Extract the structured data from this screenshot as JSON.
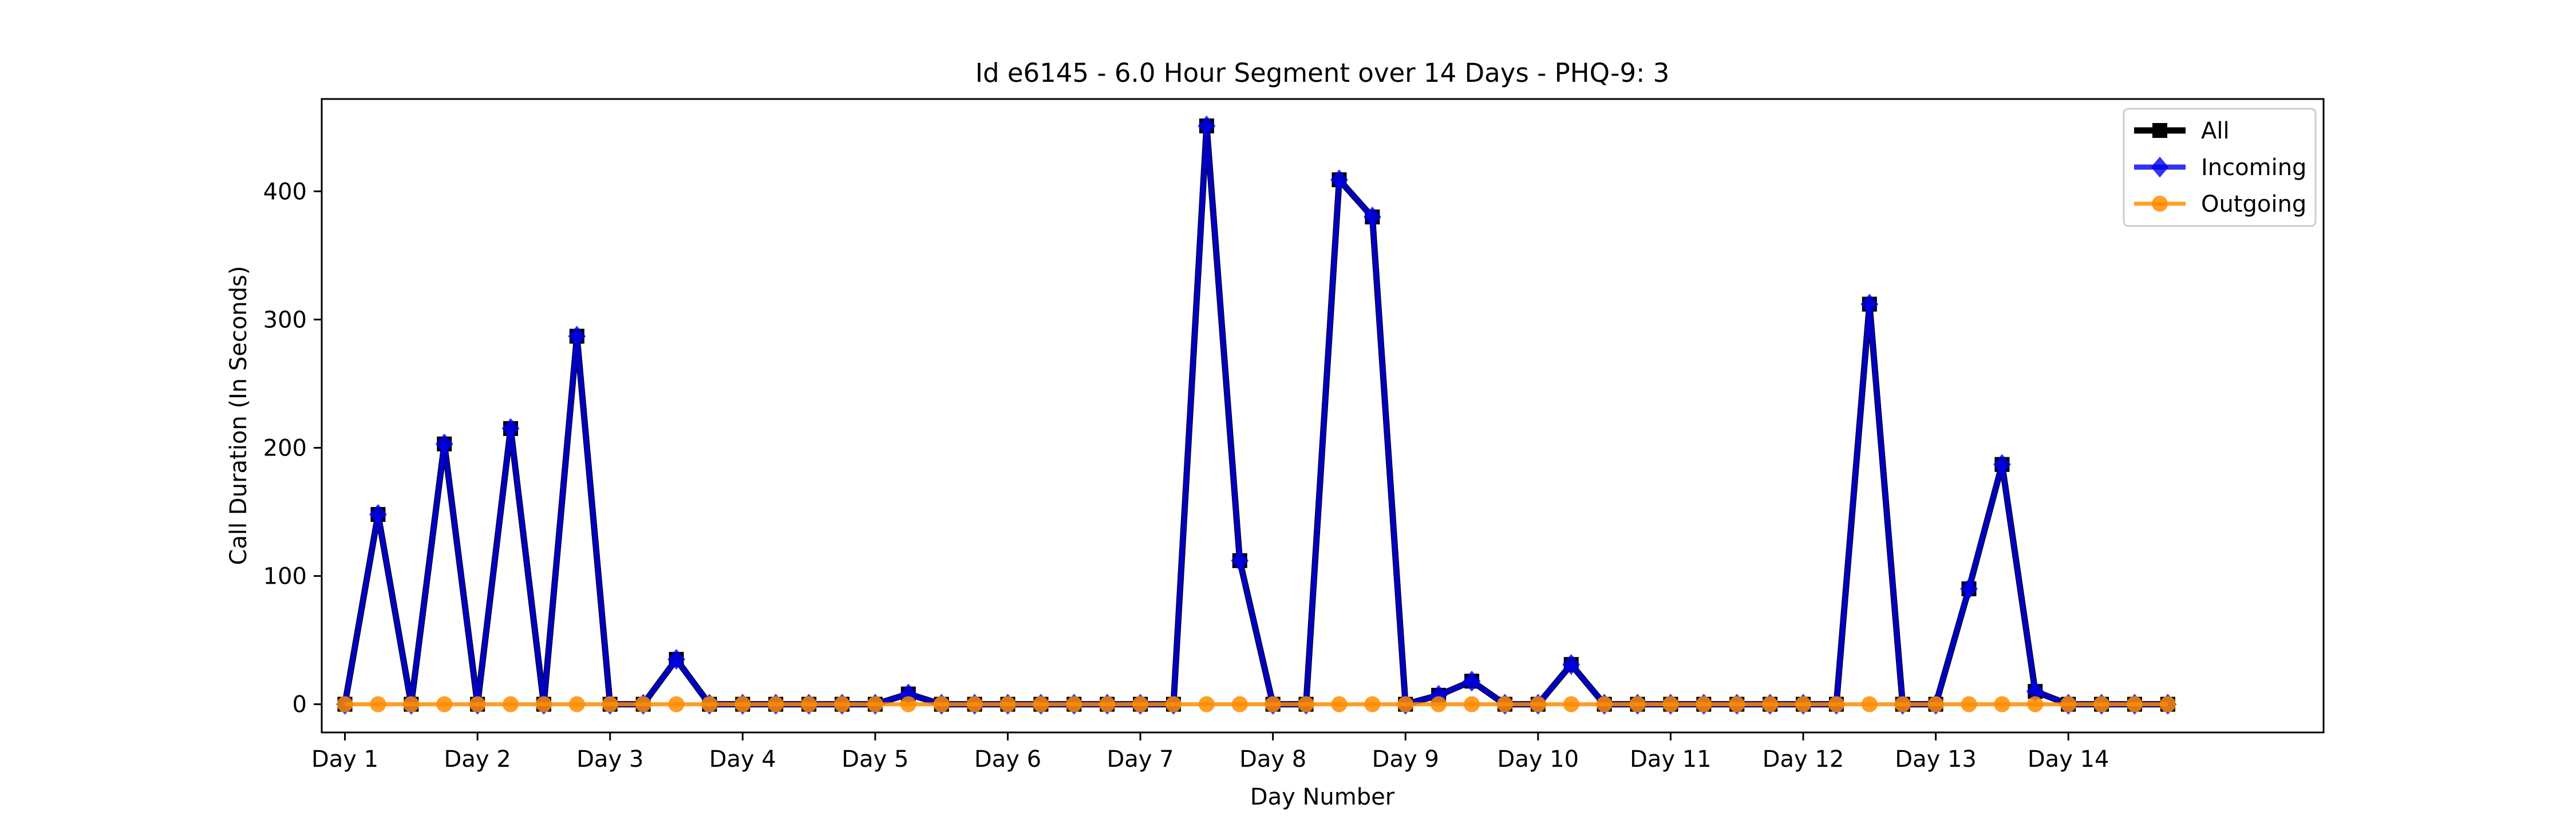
{
  "chart_data": {
    "type": "line",
    "title": "Id e6145 - 6.0 Hour Segment over 14 Days - PHQ-9: 3",
    "xlabel": "Day Number",
    "ylabel": "Call Duration (In Seconds)",
    "xlim": [
      -0.7,
      59.7
    ],
    "ylim": [
      -22,
      472
    ],
    "yticks": [
      0,
      100,
      200,
      300,
      400
    ],
    "xticks": [
      {
        "pos": 0,
        "label": "Day 1"
      },
      {
        "pos": 4,
        "label": "Day 2"
      },
      {
        "pos": 8,
        "label": "Day 3"
      },
      {
        "pos": 12,
        "label": "Day 4"
      },
      {
        "pos": 16,
        "label": "Day 5"
      },
      {
        "pos": 20,
        "label": "Day 6"
      },
      {
        "pos": 24,
        "label": "Day 7"
      },
      {
        "pos": 28,
        "label": "Day 8"
      },
      {
        "pos": 32,
        "label": "Day 9"
      },
      {
        "pos": 36,
        "label": "Day 10"
      },
      {
        "pos": 40,
        "label": "Day 11"
      },
      {
        "pos": 44,
        "label": "Day 12"
      },
      {
        "pos": 48,
        "label": "Day 13"
      },
      {
        "pos": 52,
        "label": "Day 14"
      }
    ],
    "grid": false,
    "legend_position": "top-right",
    "series": [
      {
        "name": "All",
        "color": "#000000",
        "marker": "square",
        "values": [
          0,
          148,
          0,
          203,
          0,
          215,
          0,
          287,
          0,
          0,
          35,
          0,
          0,
          0,
          0,
          0,
          0,
          8,
          0,
          0,
          0,
          0,
          0,
          0,
          0,
          0,
          451,
          112,
          0,
          0,
          409,
          380,
          0,
          7,
          18,
          0,
          0,
          31,
          0,
          0,
          0,
          0,
          0,
          0,
          0,
          0,
          312,
          0,
          0,
          90,
          187,
          10,
          0,
          0,
          0,
          0
        ]
      },
      {
        "name": "Incoming",
        "color": "#0000ee",
        "marker": "diamond",
        "values": [
          0,
          148,
          0,
          203,
          0,
          215,
          0,
          287,
          0,
          0,
          35,
          0,
          0,
          0,
          0,
          0,
          0,
          8,
          0,
          0,
          0,
          0,
          0,
          0,
          0,
          0,
          451,
          112,
          0,
          0,
          409,
          380,
          0,
          7,
          18,
          0,
          0,
          31,
          0,
          0,
          0,
          0,
          0,
          0,
          0,
          0,
          312,
          0,
          0,
          90,
          187,
          10,
          0,
          0,
          0,
          0
        ]
      },
      {
        "name": "Outgoing",
        "color": "#ff8c00",
        "marker": "circle",
        "values": [
          0,
          0,
          0,
          0,
          0,
          0,
          0,
          0,
          0,
          0,
          0,
          0,
          0,
          0,
          0,
          0,
          0,
          0,
          0,
          0,
          0,
          0,
          0,
          0,
          0,
          0,
          0,
          0,
          0,
          0,
          0,
          0,
          0,
          0,
          0,
          0,
          0,
          0,
          0,
          0,
          0,
          0,
          0,
          0,
          0,
          0,
          0,
          0,
          0,
          0,
          0,
          0,
          0,
          0,
          0,
          0
        ]
      }
    ]
  }
}
